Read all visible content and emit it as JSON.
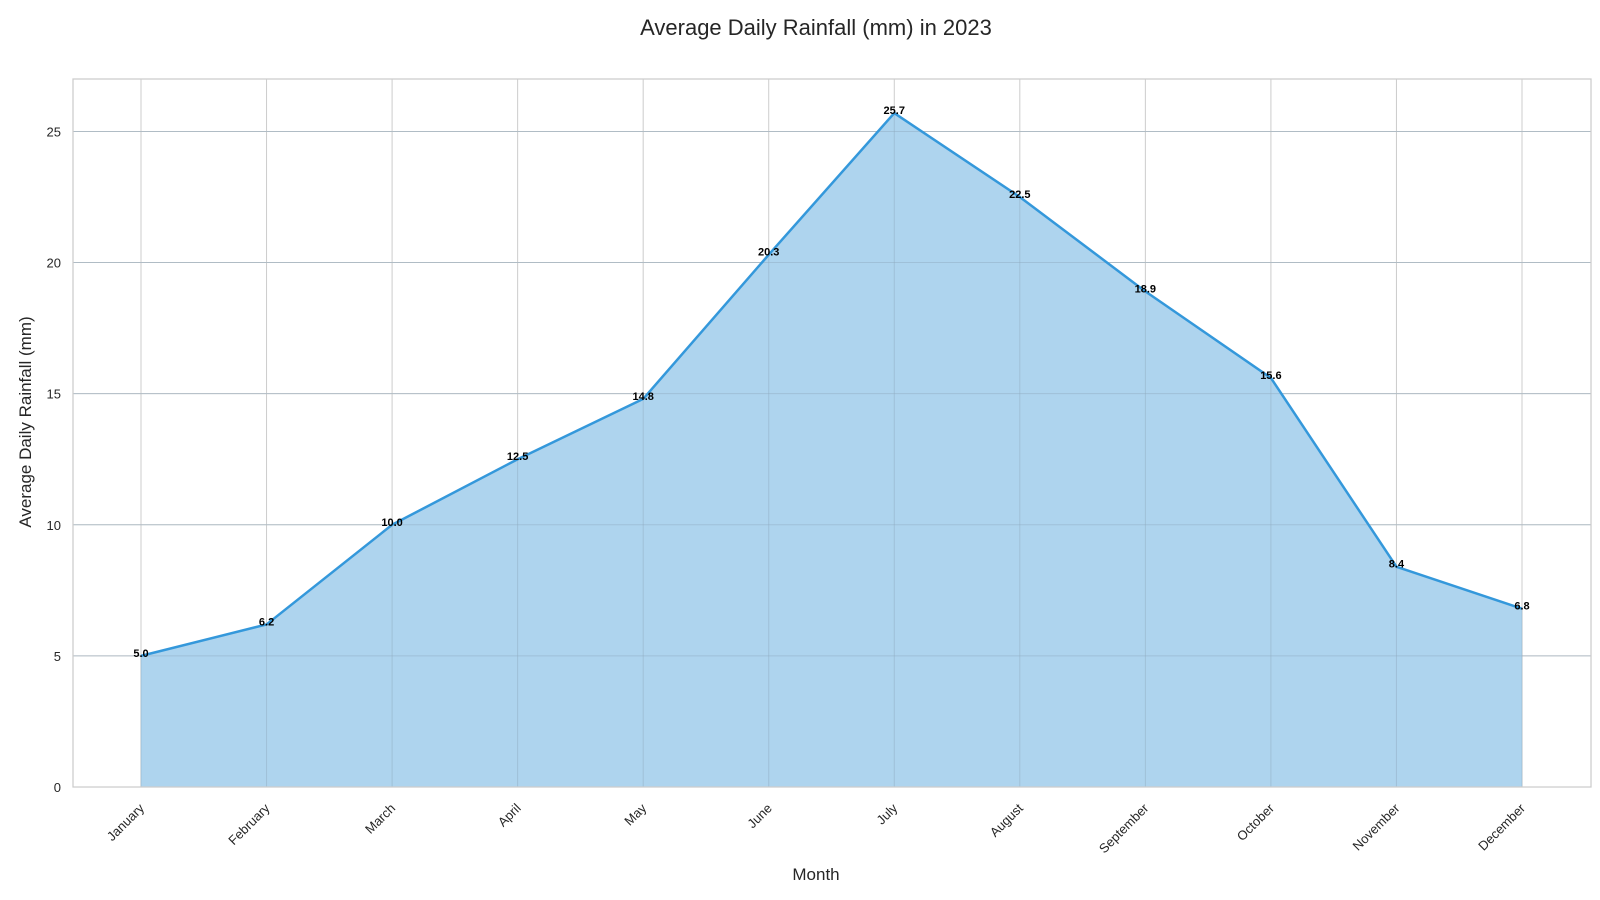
{
  "chart_data": {
    "type": "area",
    "title": "Average Daily Rainfall (mm) in 2023",
    "xlabel": "Month",
    "ylabel": "Average Daily Rainfall (mm)",
    "categories": [
      "January",
      "February",
      "March",
      "April",
      "May",
      "June",
      "July",
      "August",
      "September",
      "October",
      "November",
      "December"
    ],
    "values": [
      5.0,
      6.2,
      10.0,
      12.5,
      14.8,
      20.3,
      25.7,
      22.5,
      18.9,
      15.6,
      8.4,
      6.8
    ],
    "data_labels": [
      "5.0",
      "6.2",
      "10.0",
      "12.5",
      "14.8",
      "20.3",
      "25.7",
      "22.5",
      "18.9",
      "15.6",
      "8.4",
      "6.8"
    ],
    "ylim": [
      0,
      27
    ],
    "yticks": [
      0,
      5,
      10,
      15,
      20,
      25
    ],
    "ytick_labels": [
      "0",
      "5",
      "10",
      "15",
      "20",
      "25"
    ],
    "grid": true,
    "legend": false,
    "colors": {
      "line": "#3498db",
      "fill": "#aed4ee",
      "grid": "#cccccc",
      "frame": "#cccccc"
    }
  }
}
